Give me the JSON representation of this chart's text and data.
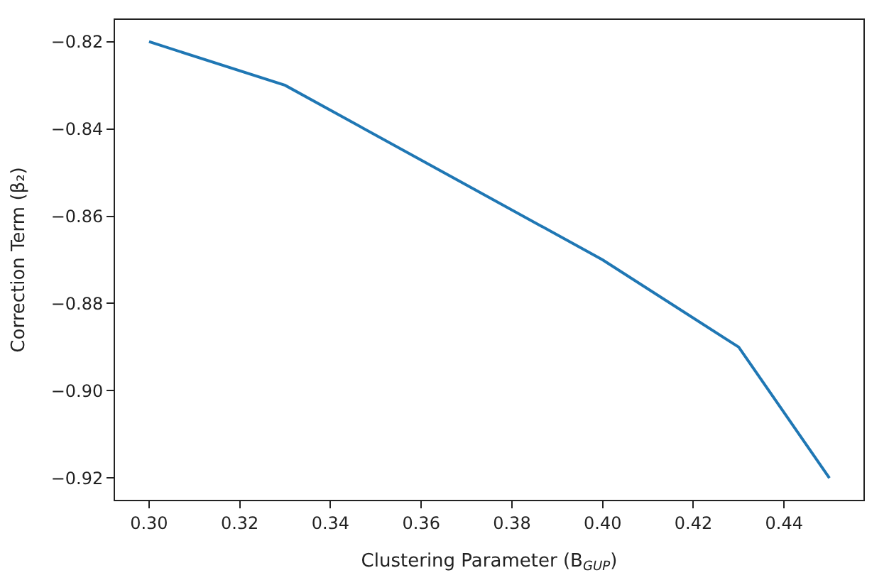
{
  "chart_data": {
    "type": "line",
    "xlabel": "Clustering Parameter (B$_{GUP}$)",
    "ylabel": "Correction Term (β₂)",
    "x": [
      0.3,
      0.33,
      0.4,
      0.43,
      0.45
    ],
    "series": [
      {
        "color": "#1f77b4",
        "values": [
          -0.82,
          -0.83,
          -0.87,
          -0.89,
          -0.92
        ]
      }
    ],
    "xlim": [
      0.2925,
      0.4575
    ],
    "xticks": [
      {
        "value": 0.3,
        "label": "0.30"
      },
      {
        "value": 0.32,
        "label": "0.32"
      },
      {
        "value": 0.34,
        "label": "0.34"
      },
      {
        "value": 0.36,
        "label": "0.36"
      },
      {
        "value": 0.38,
        "label": "0.38"
      },
      {
        "value": 0.4,
        "label": "0.40"
      },
      {
        "value": 0.42,
        "label": "0.42"
      },
      {
        "value": 0.44,
        "label": "0.44"
      }
    ],
    "ylim": [
      -0.925,
      -0.815
    ],
    "yticks": [
      {
        "value": -0.82,
        "label": "−0.82"
      },
      {
        "value": -0.84,
        "label": "−0.84"
      },
      {
        "value": -0.86,
        "label": "−0.86"
      },
      {
        "value": -0.88,
        "label": "−0.88"
      },
      {
        "value": -0.9,
        "label": "−0.90"
      },
      {
        "value": -0.92,
        "label": "−0.92"
      }
    ],
    "marker": "none",
    "line_style": "solid"
  }
}
